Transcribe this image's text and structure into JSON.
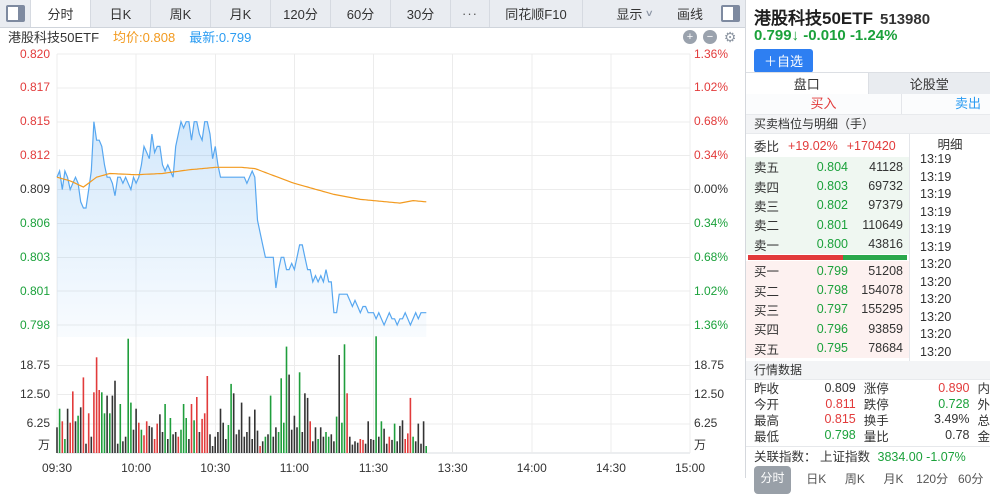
{
  "colors": {
    "red": "#e23b3b",
    "green": "#1ba13b",
    "blue": "#2b9cf2",
    "button_blue": "#2e7ff2",
    "avg_orange": "#f29a1f",
    "line_blue": "#57a7f0",
    "volume_black": "#333333",
    "grid": "#ececec",
    "axis_line": "#d9dce0"
  },
  "toolbar": {
    "tabs": [
      "分时",
      "日K",
      "周K",
      "月K",
      "120分",
      "60分",
      "30分"
    ],
    "selected_index": 0,
    "more_label": "···",
    "f10_label": "同花顺F10",
    "display_label": "显示",
    "draw_label": "画线"
  },
  "chart_header": {
    "name": "港股科技50ETF",
    "avg_label": "均价:",
    "avg_value": "0.808",
    "last_label": "最新:",
    "last_value": "0.799"
  },
  "chart_data": {
    "type": "line",
    "title": "港股科技50ETF 分时走势",
    "x_axis": {
      "labels": [
        "09:30",
        "10:00",
        "10:30",
        "11:00",
        "11:30",
        "13:30",
        "14:00",
        "14:30",
        "15:00"
      ],
      "session_minutes": 240,
      "data_minutes": 140
    },
    "y_axis_price": {
      "labels": [
        "0.820",
        "0.817",
        "0.815",
        "0.812",
        "0.809",
        "0.806",
        "0.803",
        "0.801",
        "0.798"
      ],
      "max": 0.82,
      "min": 0.798,
      "prev_close": 0.809
    },
    "y_axis_pct": {
      "labels": [
        "1.36%",
        "1.02%",
        "0.68%",
        "0.34%",
        "0.00%",
        "0.34%",
        "0.68%",
        "1.02%",
        "1.36%"
      ]
    },
    "volume_axis": {
      "labels": [
        "18.75",
        "12.50",
        "6.25"
      ],
      "unit": "万",
      "max": 25
    },
    "series": [
      {
        "name": "price",
        "color_key": "line_blue",
        "values": [
          0.81,
          0.8105,
          0.809,
          0.8105,
          0.81,
          0.809,
          0.8095,
          0.81,
          0.8095,
          0.808,
          0.8075,
          0.8075,
          0.809,
          0.8105,
          0.8145,
          0.813,
          0.813,
          0.8125,
          0.811,
          0.81,
          0.81,
          0.8095,
          0.8085,
          0.81,
          0.81,
          0.8095,
          0.81,
          0.8095,
          0.809,
          0.81,
          0.8095,
          0.81,
          0.811,
          0.8125,
          0.812,
          0.8115,
          0.8135,
          0.812,
          0.8125,
          0.8125,
          0.811,
          0.8105,
          0.811,
          0.8105,
          0.81,
          0.8125,
          0.8135,
          0.8145,
          0.814,
          0.8145,
          0.8145,
          0.813,
          0.8145,
          0.8145,
          0.8135,
          0.813,
          0.8145,
          0.8145,
          0.8135,
          0.8115,
          0.8125,
          0.811,
          0.81,
          0.81,
          0.81,
          0.81,
          0.81,
          0.81,
          0.81,
          0.81,
          0.81,
          0.81,
          0.8095,
          0.81,
          0.8105,
          0.81,
          0.8065,
          0.8055,
          0.8045,
          0.8035,
          0.8035,
          0.8035,
          0.8035,
          0.801,
          0.8025,
          0.8035,
          0.8035,
          0.8025,
          0.8025,
          0.803,
          0.8025,
          0.8035,
          0.8045,
          0.8045,
          0.8035,
          0.8025,
          0.8025,
          0.8015,
          0.802,
          0.8015,
          0.802,
          0.8015,
          0.8025,
          0.8015,
          0.8015,
          0.799,
          0.799,
          0.8005,
          0.8005,
          0.8005,
          0.8005,
          0.8,
          0.7995,
          0.8,
          0.7995,
          0.799,
          0.7995,
          0.7995,
          0.799,
          0.799,
          0.799,
          0.7985,
          0.799,
          0.7985,
          0.798,
          0.7985,
          0.799,
          0.7985,
          0.7985,
          0.798,
          0.7985,
          0.7985,
          0.799,
          0.7985,
          0.798,
          0.7985,
          0.799,
          0.7985,
          0.799,
          0.799,
          0.799
        ]
      },
      {
        "name": "avg",
        "color_key": "avg_orange",
        "anchors": [
          [
            0,
            0.81
          ],
          [
            5,
            0.8097
          ],
          [
            10,
            0.8092
          ],
          [
            15,
            0.81
          ],
          [
            20,
            0.8103
          ],
          [
            30,
            0.8102
          ],
          [
            40,
            0.8103
          ],
          [
            50,
            0.8106
          ],
          [
            60,
            0.8108
          ],
          [
            70,
            0.8108
          ],
          [
            75,
            0.8107
          ],
          [
            80,
            0.8103
          ],
          [
            85,
            0.8099
          ],
          [
            90,
            0.8095
          ],
          [
            95,
            0.8092
          ],
          [
            100,
            0.8089
          ],
          [
            105,
            0.8086
          ],
          [
            110,
            0.8084
          ],
          [
            115,
            0.8082
          ],
          [
            120,
            0.8081
          ],
          [
            125,
            0.808
          ],
          [
            130,
            0.8079
          ],
          [
            135,
            0.8081
          ],
          [
            140,
            0.808
          ]
        ]
      }
    ],
    "volume": {
      "heights": [
        5.5,
        9.5,
        6.8,
        3.0,
        9.5,
        6.5,
        13.2,
        6.8,
        8.0,
        9.8,
        16.2,
        2.0,
        8.5,
        3.5,
        13.0,
        20.5,
        13.5,
        13.0,
        8.5,
        12.3,
        8.5,
        12.3,
        15.5,
        2.0,
        10.5,
        2.5,
        3.5,
        24.5,
        10.8,
        5.0,
        9.5,
        6.5,
        5.0,
        3.8,
        6.8,
        5.8,
        5.5,
        3.0,
        6.3,
        8.3,
        4.5,
        10.5,
        3.0,
        7.5,
        4.0,
        4.5,
        3.5,
        5.0,
        10.5,
        7.5,
        3.0,
        10.5,
        7.0,
        12.0,
        4.5,
        7.3,
        8.5,
        16.5,
        4.0,
        1.5,
        3.5,
        4.5,
        9.5,
        6.5,
        3.0,
        6.0,
        14.8,
        12.8,
        4.0,
        5.0,
        10.8,
        3.5,
        4.5,
        7.8,
        3.0,
        9.3,
        4.8,
        1.5,
        2.5,
        3.5,
        4.0,
        12.3,
        3.5,
        5.5,
        4.5,
        16.0,
        6.5,
        22.8,
        16.8,
        5.0,
        8.0,
        5.5,
        17.3,
        4.5,
        12.8,
        11.8,
        6.8,
        2.5,
        5.5,
        3.0,
        5.5,
        3.5,
        4.5,
        3.5,
        4.0,
        2.5,
        7.8,
        21.0,
        6.5,
        23.3,
        12.8,
        3.5,
        1.8,
        2.5,
        2.2,
        3.0,
        2.8,
        2.0,
        6.8,
        3.0,
        2.8,
        25.0,
        3.5,
        6.8,
        5.2,
        2.0,
        3.5,
        2.8,
        6.3,
        2.5,
        5.8,
        7.0,
        3.0,
        4.2,
        11.8,
        3.5,
        2.5,
        6.3,
        2.0,
        6.8,
        1.5
      ],
      "colors": "kgrgkrrkgkrkrkrrrggkgkkkgkkggkkrgrrkkrrkkgkgkkrgggkrgrkrrrkkkkkkkggkkkkkkkkkkrkgkgkkggggkkkkgkkkrkkgkkggkkgkggrkkkkrrkkkkgkgkkrkgkkkrrrgkkkkg"
    }
  },
  "panel": {
    "name": "港股科技50ETF",
    "code": "513980",
    "price": "0.799",
    "arrow": "↓",
    "change": "-0.010",
    "change_pct": "-1.24%",
    "add_watch_label": "＋自选",
    "tabs": [
      "盘口",
      "论股堂"
    ],
    "tabs_selected_index": 0,
    "buy_label": "买入",
    "sell_label": "卖出",
    "section_orderbook": "买卖档位与明细（手）",
    "weibi_label": "委比",
    "weibi_pct": "+19.02%",
    "weibi_diff": "+170420",
    "detail_label": "明细",
    "sell_levels": [
      {
        "label": "卖五",
        "price": "0.804",
        "vol": "41128"
      },
      {
        "label": "卖四",
        "price": "0.803",
        "vol": "69732"
      },
      {
        "label": "卖三",
        "price": "0.802",
        "vol": "97379"
      },
      {
        "label": "卖二",
        "price": "0.801",
        "vol": "110649"
      },
      {
        "label": "卖一",
        "price": "0.800",
        "vol": "43816"
      }
    ],
    "buy_levels": [
      {
        "label": "买一",
        "price": "0.799",
        "vol": "51208"
      },
      {
        "label": "买二",
        "price": "0.798",
        "vol": "154078"
      },
      {
        "label": "买三",
        "price": "0.797",
        "vol": "155295"
      },
      {
        "label": "买四",
        "price": "0.796",
        "vol": "93859"
      },
      {
        "label": "买五",
        "price": "0.795",
        "vol": "78684"
      }
    ],
    "ratio_red": 0.595,
    "detail_times": [
      "13:19",
      "13:19",
      "13:19",
      "13:19",
      "13:19",
      "13:19",
      "13:20",
      "13:20",
      "13:20",
      "13:20",
      "13:20",
      "13:20"
    ],
    "section_quotes": "行情数据",
    "quotes": [
      {
        "l1": "昨收",
        "v1": "0.809",
        "c1": "k",
        "l2": "涨停",
        "v2": "0.890",
        "c2": "r",
        "l3": "内"
      },
      {
        "l1": "今开",
        "v1": "0.811",
        "c1": "r",
        "l2": "跌停",
        "v2": "0.728",
        "c2": "g",
        "l3": "外"
      },
      {
        "l1": "最高",
        "v1": "0.815",
        "c1": "r",
        "l2": "换手",
        "v2": "3.49%",
        "c2": "k",
        "l3": "总"
      },
      {
        "l1": "最低",
        "v1": "0.798",
        "c1": "g",
        "l2": "量比",
        "v2": "0.78",
        "c2": "k",
        "l3": "金"
      }
    ],
    "linked_label": "关联指数：",
    "linked_name": "上证指数",
    "linked_value": "3834.00",
    "linked_pct": "-1.07%"
  },
  "mini_toolbar": {
    "tabs": [
      "分时",
      "日K",
      "周K",
      "月K",
      "120分",
      "60分"
    ],
    "selected_index": 0
  }
}
